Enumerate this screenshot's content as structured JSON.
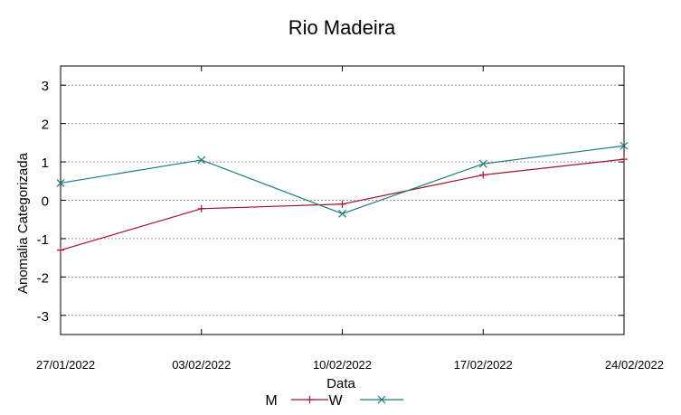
{
  "chart_data": {
    "type": "line",
    "title": "Rio Madeira",
    "xlabel": "Data",
    "ylabel": "Anomalia Categorizada",
    "categories": [
      "27/01/2022",
      "03/02/2022",
      "10/02/2022",
      "17/02/2022",
      "24/02/2022"
    ],
    "ylim": [
      -3.5,
      3.5
    ],
    "yticks": [
      -3,
      -2,
      -1,
      0,
      1,
      2,
      3
    ],
    "ytick_labels": [
      "-3",
      "-2",
      "-1",
      "0",
      "1",
      "2",
      "3"
    ],
    "grid": true,
    "legend_position": "bottom",
    "series": [
      {
        "name": "M",
        "values": [
          -1.3,
          -0.22,
          -0.1,
          0.66,
          1.07
        ],
        "color": "#a0142c",
        "marker": "plus"
      },
      {
        "name": "W",
        "values": [
          0.45,
          1.05,
          -0.35,
          0.95,
          1.42
        ],
        "color": "#1f7a80",
        "marker": "x"
      }
    ]
  }
}
